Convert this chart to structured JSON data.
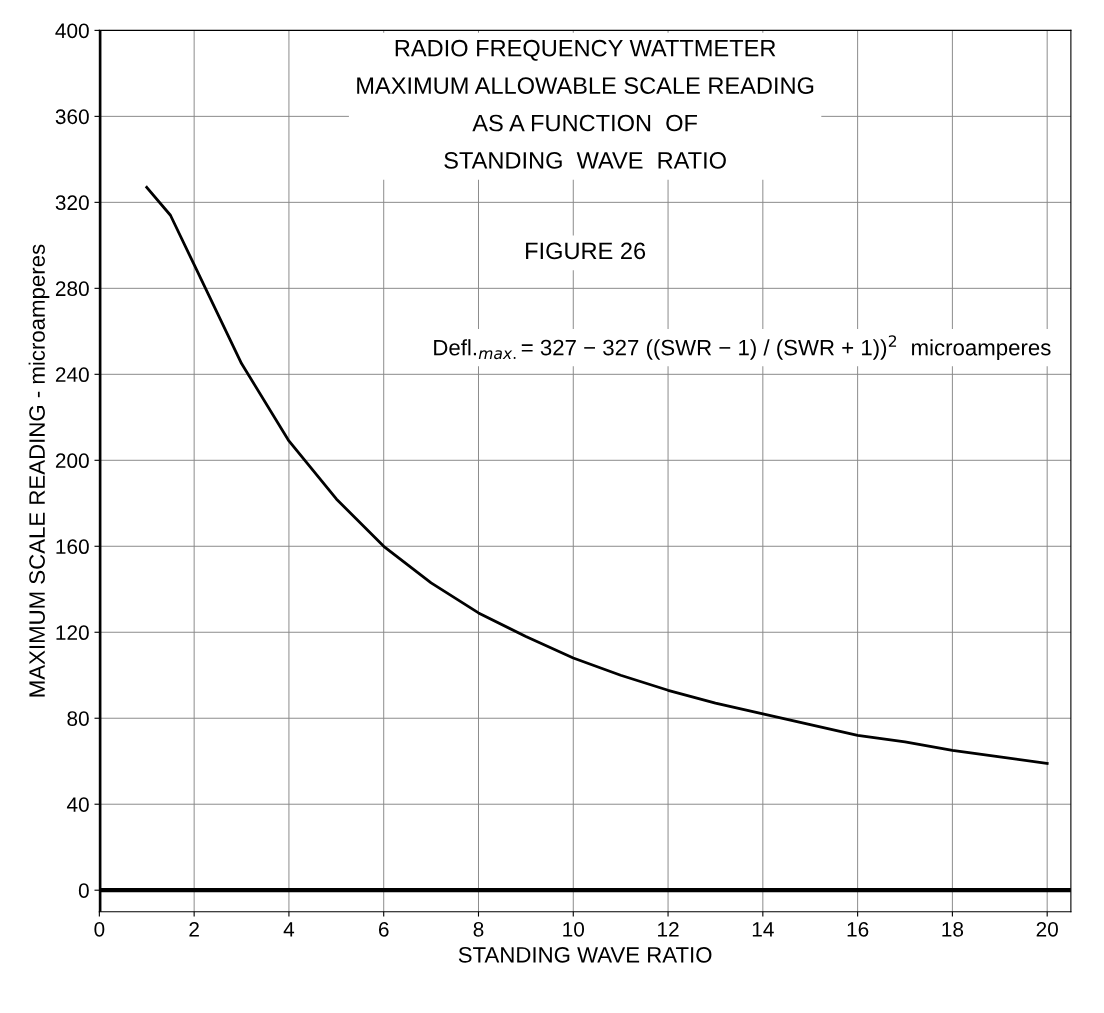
{
  "chart_data": {
    "type": "line",
    "title": "RADIO FREQUENCY WATTMETER\nMAXIMUM ALLOWABLE SCALE READING\nAS A FUNCTION  OF\nSTANDING  WAVE  RATIO",
    "subtitle": "FIGURE 26",
    "annotations": [
      "Defl.$_{max.}$= 327 − 327 ((SWR − 1) / (SWR + 1))$^{2}$  microamperes"
    ],
    "xlabel": "STANDING WAVE RATIO",
    "ylabel": "MAXIMUM SCALE READING - microamperes",
    "x": [
      1,
      1.5,
      2,
      3,
      4,
      5,
      6,
      7,
      8,
      9,
      10,
      11,
      12,
      13,
      14,
      15,
      16,
      17,
      18,
      19,
      20
    ],
    "series": [
      {
        "color": "#000000",
        "values": [
          327,
          314,
          291,
          245,
          209,
          182,
          160,
          143,
          129,
          118,
          108,
          100,
          93,
          87,
          82,
          77,
          72,
          69,
          65,
          62,
          59
        ]
      }
    ],
    "xlim": [
      0,
      20.5
    ],
    "ylim": [
      -10,
      400
    ],
    "xticks": [
      0,
      2,
      4,
      6,
      8,
      10,
      12,
      14,
      16,
      18,
      20
    ],
    "yticks": [
      0,
      40,
      80,
      120,
      160,
      200,
      240,
      280,
      320,
      360,
      400
    ],
    "grid": true,
    "marker": "none",
    "line_style": "solid"
  }
}
